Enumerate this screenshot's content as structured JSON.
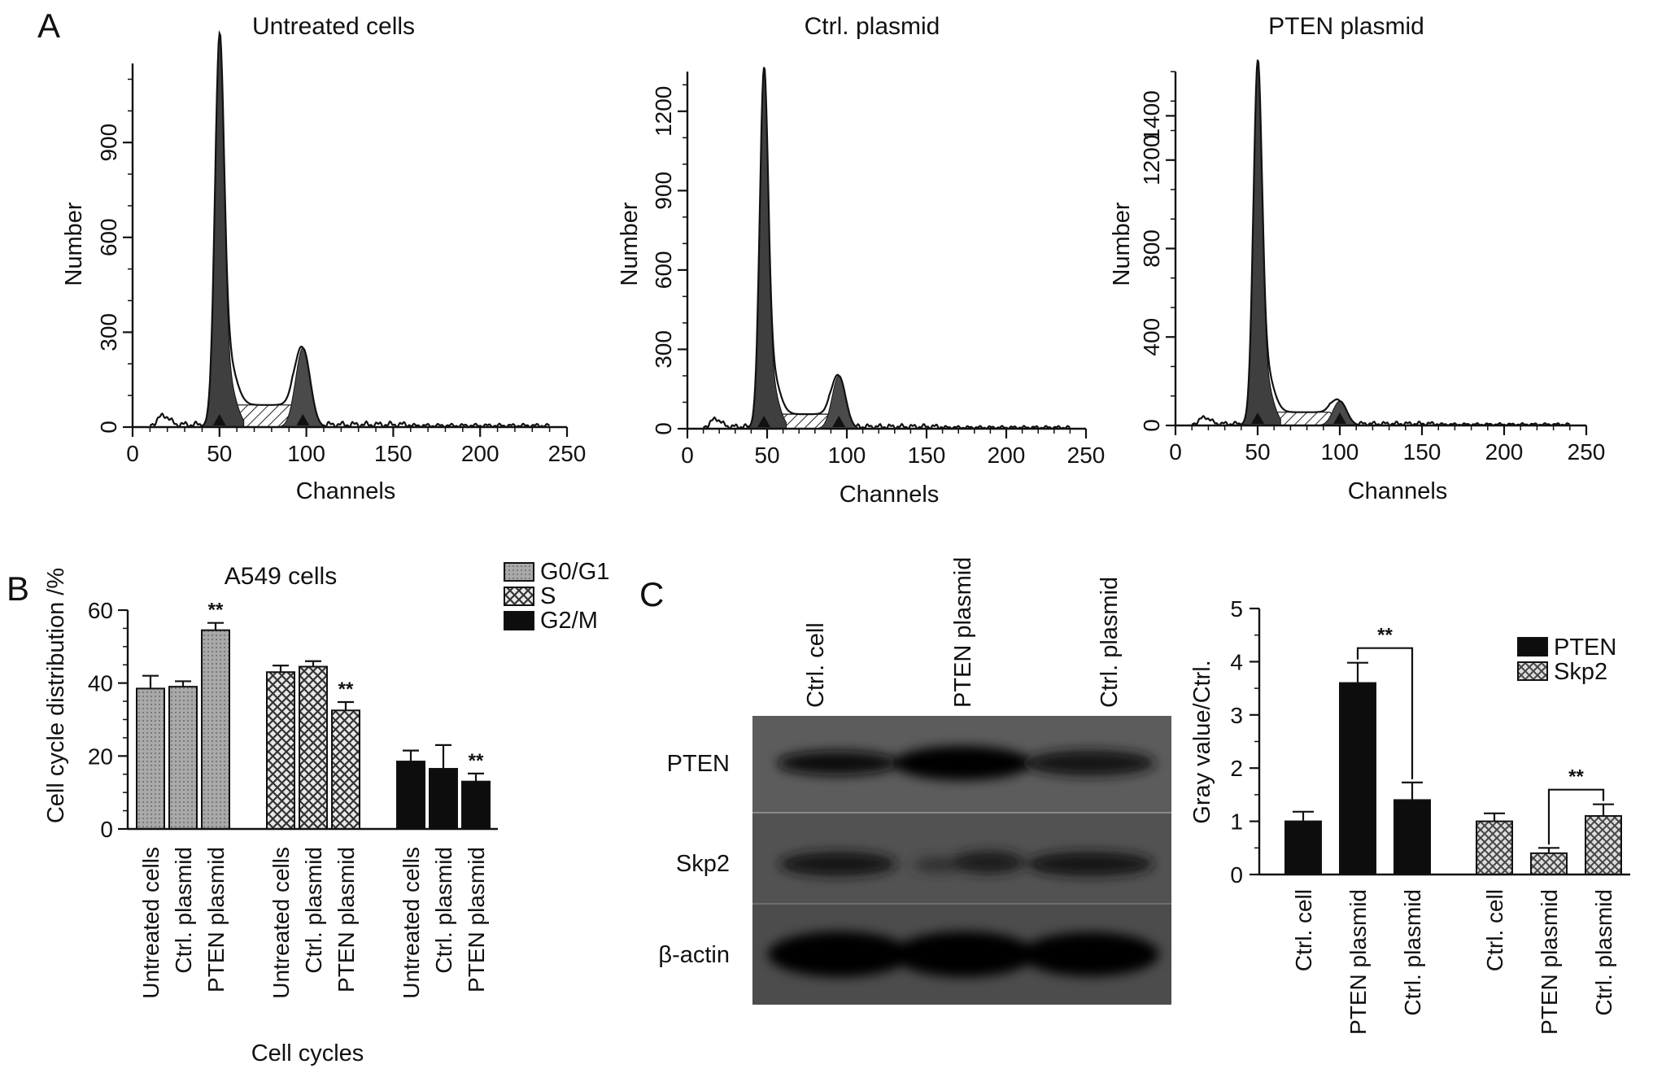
{
  "panel_labels": [
    "A",
    "B",
    "C"
  ],
  "blot": {
    "lane_labels": [
      "Ctrl. cell",
      "PTEN plasmid",
      "Ctrl. plasmid"
    ],
    "row_labels": [
      "PTEN",
      "Skp2",
      "β-actin"
    ]
  },
  "chart_data": [
    {
      "type": "area",
      "title": "Untreated cells",
      "xlabel": "Channels",
      "ylabel": "Number",
      "xlim": [
        0,
        250
      ],
      "ylim": [
        0,
        1150
      ],
      "xticks": [
        "0",
        "50",
        "100",
        "150",
        "200",
        "250"
      ],
      "yticks": [
        "0",
        "300",
        "600",
        "900"
      ],
      "ytick_values": [
        0,
        300,
        600,
        900
      ],
      "g1_peak": {
        "channel": 50,
        "count": 1130
      },
      "g2_peak": {
        "channel": 98,
        "count": 250
      },
      "s_phase_level": 70,
      "markers": [
        50,
        98
      ]
    },
    {
      "type": "area",
      "title": "Ctrl. plasmid",
      "xlabel": "Channels",
      "ylabel": "Number",
      "xlim": [
        0,
        250
      ],
      "ylim": [
        0,
        1350
      ],
      "xticks": [
        "0",
        "50",
        "100",
        "150",
        "200",
        "250"
      ],
      "yticks": [
        "0",
        "300",
        "600",
        "900",
        "1200"
      ],
      "ytick_values": [
        0,
        300,
        600,
        900,
        1200
      ],
      "g1_peak": {
        "channel": 48,
        "count": 1240
      },
      "g2_peak": {
        "channel": 95,
        "count": 200
      },
      "s_phase_level": 55,
      "markers": [
        48,
        95
      ]
    },
    {
      "type": "area",
      "title": "PTEN plasmid",
      "xlabel": "Channels",
      "ylabel": "Number",
      "xlim": [
        0,
        250
      ],
      "ylim": [
        0,
        1600
      ],
      "xticks": [
        "0",
        "50",
        "100",
        "150",
        "200",
        "250"
      ],
      "yticks": [
        "0",
        "400",
        "800",
        "1200",
        "1400"
      ],
      "ytick_values": [
        0,
        400,
        800,
        1200,
        1400
      ],
      "g1_peak": {
        "channel": 50,
        "count": 1500
      },
      "g2_peak": {
        "channel": 100,
        "count": 110
      },
      "s_phase_level": 60,
      "markers": [
        50,
        100
      ]
    },
    {
      "type": "bar",
      "title": "A549 cells",
      "xlabel": "Cell cycles",
      "ylabel": "Cell cycle distribution /%",
      "ylim": [
        0,
        60
      ],
      "yticks": [
        "0",
        "20",
        "40",
        "60"
      ],
      "ytick_values": [
        0,
        20,
        40,
        60
      ],
      "categories": [
        "Untreated cells",
        "Ctrl. plasmid",
        "PTEN plasmid"
      ],
      "legend_position": "top-right",
      "series": [
        {
          "name": "G0/G1",
          "values": [
            38.5,
            39,
            54.5
          ],
          "errors": [
            3.5,
            1.5,
            2
          ],
          "significant": [
            "",
            "",
            "**"
          ]
        },
        {
          "name": "S",
          "values": [
            43,
            44.5,
            32.5
          ],
          "errors": [
            1.8,
            1.5,
            2.3
          ],
          "significant": [
            "",
            "",
            "**"
          ]
        },
        {
          "name": "G2/M",
          "values": [
            18.5,
            16.5,
            13
          ],
          "errors": [
            3,
            6.5,
            2.2
          ],
          "significant": [
            "",
            "",
            "**"
          ]
        }
      ]
    },
    {
      "type": "bar",
      "title": "",
      "xlabel": "",
      "ylabel": "Gray value/Ctrl.",
      "ylim": [
        0,
        5
      ],
      "yticks": [
        "0",
        "1",
        "2",
        "3",
        "4",
        "5"
      ],
      "ytick_values": [
        0,
        1,
        2,
        3,
        4,
        5
      ],
      "categories": [
        "Ctrl. cell",
        "PTEN plasmid",
        "Ctrl. plasmid"
      ],
      "legend_position": "top-right",
      "series": [
        {
          "name": "PTEN",
          "values": [
            1.0,
            3.6,
            1.4
          ],
          "errors": [
            0.18,
            0.38,
            0.33
          ]
        },
        {
          "name": "Skp2",
          "values": [
            1.0,
            0.4,
            1.1
          ],
          "errors": [
            0.15,
            0.1,
            0.22
          ]
        }
      ],
      "comparisons": [
        {
          "series": "PTEN",
          "between": [
            "PTEN plasmid",
            "Ctrl. plasmid"
          ],
          "label": "**"
        },
        {
          "series": "Skp2",
          "between": [
            "PTEN plasmid",
            "Ctrl. plasmid"
          ],
          "label": "**"
        }
      ]
    }
  ]
}
